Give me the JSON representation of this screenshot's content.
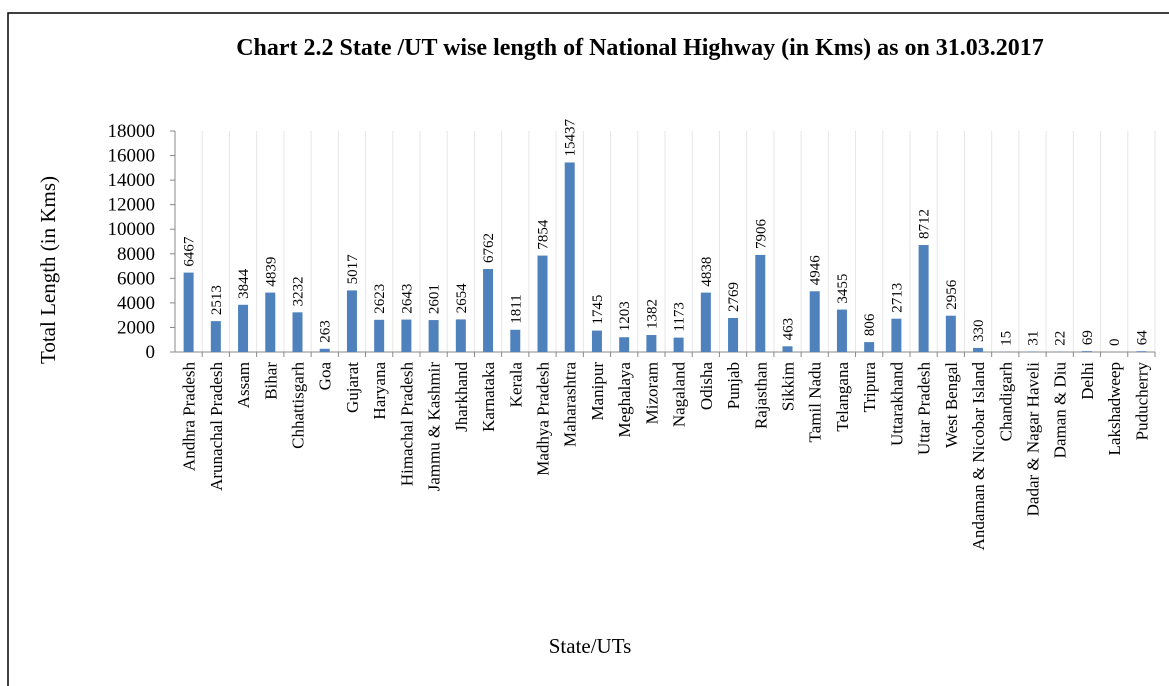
{
  "chart_data": {
    "type": "bar",
    "title": "Chart 2.2 State /UT wise length of National Highway (in Kms) as on 31.03.2017",
    "y_label": "Total Length (in Kms)",
    "x_label": "State/UTs",
    "categories": [
      "Andhra Pradesh",
      "Arunachal Pradesh",
      "Assam",
      "Bihar",
      "Chhattisgarh",
      "Goa",
      "Gujarat",
      "Haryana",
      "Himachal Pradesh",
      "Jammu & Kashmir",
      "Jharkhand",
      "Karnataka",
      "Kerala",
      "Madhya Pradesh",
      "Maharashtra",
      "Manipur",
      "Meghalaya",
      "Mizoram",
      "Nagaland",
      "Odisha",
      "Punjab",
      "Rajasthan",
      "Sikkim",
      "Tamil Nadu",
      "Telangana",
      "Tripura",
      "Uttarakhand",
      "Uttar Pradesh",
      "West Bengal",
      "Andaman & Nicobar Island",
      "Chandigarh",
      "Dadar & Nagar Haveli",
      "Daman & Diu",
      "Delhi",
      "Lakshadweep",
      "Puducherry"
    ],
    "values": [
      6467,
      2513,
      3844,
      4839,
      3232,
      263,
      5017,
      2623,
      2643,
      2601,
      2654,
      6762,
      1811,
      7854,
      15437,
      1745,
      1203,
      1382,
      1173,
      4838,
      2769,
      7906,
      463,
      4946,
      3455,
      806,
      2713,
      8712,
      2956,
      330,
      15,
      31,
      22,
      69,
      0,
      64
    ],
    "color": "#4f81bd",
    "ylim": [
      0,
      18000
    ],
    "yticks": [
      0,
      2000,
      4000,
      6000,
      8000,
      10000,
      12000,
      14000,
      16000,
      18000
    ],
    "grid": false
  }
}
